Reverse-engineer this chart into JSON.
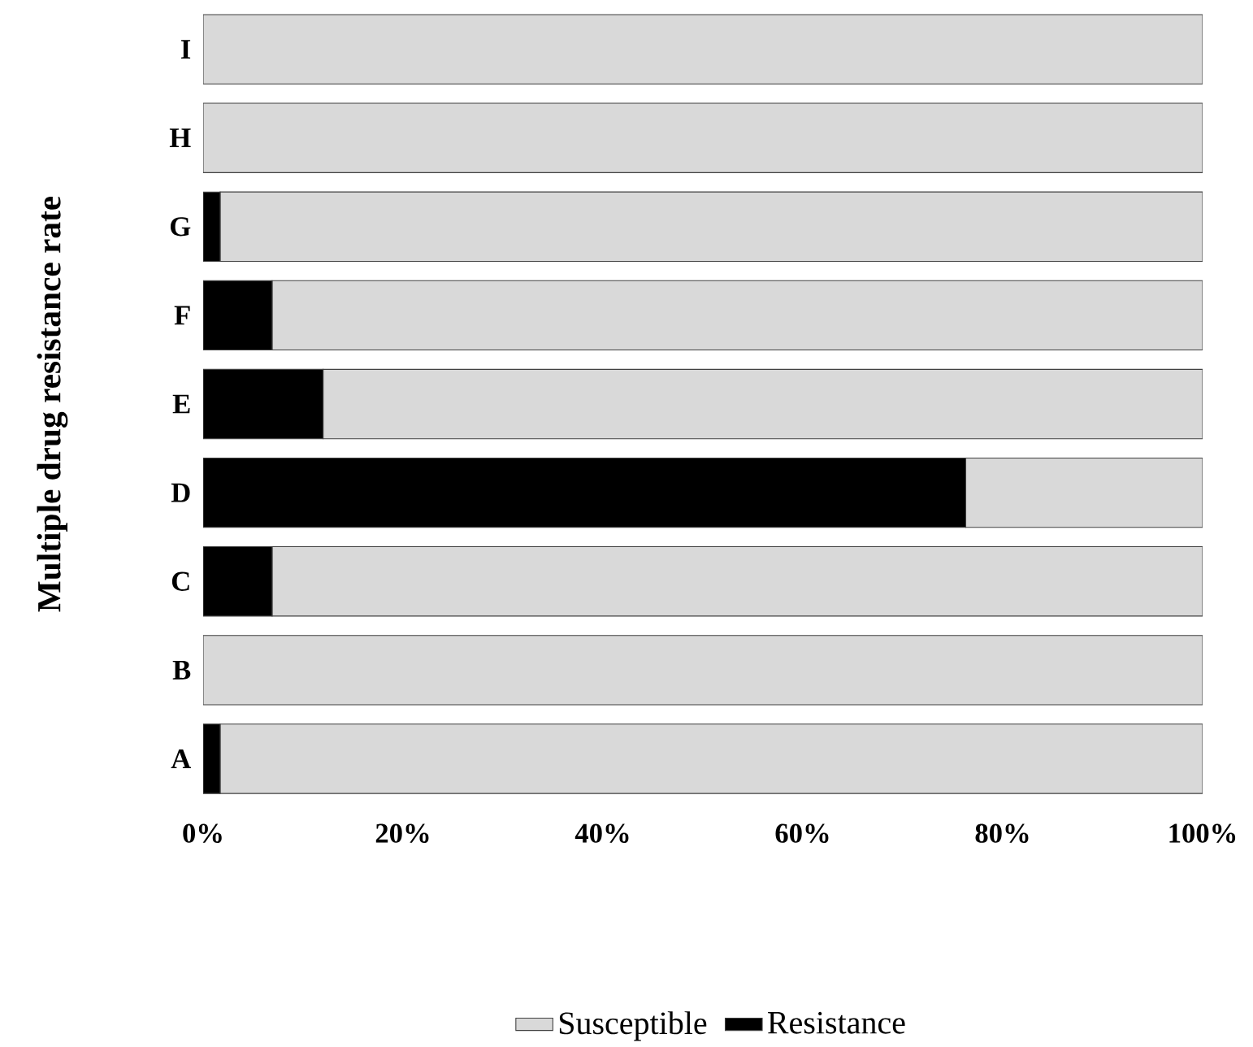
{
  "chart_data": {
    "type": "bar",
    "orientation": "horizontal",
    "stacked": true,
    "ylabel": "Multiple drug resistance rate",
    "categories": [
      "I",
      "H",
      "G",
      "F",
      "E",
      "D",
      "C",
      "B",
      "A"
    ],
    "series": [
      {
        "name": "Resistance",
        "color": "#000000",
        "values": [
          0,
          0,
          1.7,
          6.9,
          12,
          76.3,
          6.9,
          0,
          1.7
        ]
      },
      {
        "name": "Susceptible",
        "color": "#d9d9d9",
        "values": [
          100,
          100,
          98.3,
          93.1,
          88,
          23.7,
          93.1,
          100,
          98.3
        ]
      }
    ],
    "xlim": [
      0,
      100
    ],
    "xticks": [
      {
        "value": 0,
        "label": "0%"
      },
      {
        "value": 20,
        "label": "20%"
      },
      {
        "value": 40,
        "label": "40%"
      },
      {
        "value": 60,
        "label": "60%"
      },
      {
        "value": 80,
        "label": "80%"
      },
      {
        "value": 100,
        "label": "100%"
      }
    ],
    "legend": "bottom"
  }
}
